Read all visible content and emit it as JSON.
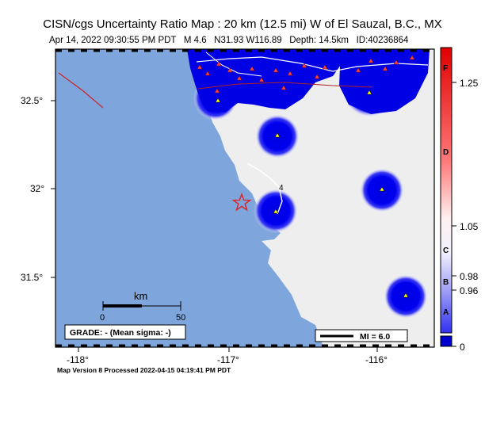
{
  "header": {
    "title": "CISN/cgs Uncertainty Ratio Map : 20 km (12.5 mi) W of El Sauzal, B.C., MX",
    "subtitle": "Apr 14, 2022 09:30:55 PM PDT   M 4.6   N31.93 W116.89   Depth: 14.5km   ID:40236864"
  },
  "map": {
    "lat_ticks": [
      {
        "value": 32.5,
        "label": "32.5°"
      },
      {
        "value": 32.0,
        "label": "32°"
      },
      {
        "value": 31.5,
        "label": "31.5°"
      }
    ],
    "lon_ticks": [
      {
        "value": -118,
        "label": "-118°"
      },
      {
        "value": -117,
        "label": "-117°"
      },
      {
        "value": -116,
        "label": "-116°"
      }
    ],
    "highway_label": "4",
    "scale_bar": {
      "unit": "km",
      "start": "0",
      "end": "50"
    },
    "grade_box": "GRADE: - (Mean sigma: -)",
    "mi_legend": "MI = 6.0"
  },
  "colorbar": {
    "letters": [
      "F",
      "D",
      "C",
      "B",
      "A"
    ],
    "values": [
      "1.25",
      "1.05",
      "0.98",
      "0.96",
      "0"
    ]
  },
  "footer": {
    "text": "Map Version 8 Processed 2022-04-15 04:19:41 PM PDT"
  }
}
